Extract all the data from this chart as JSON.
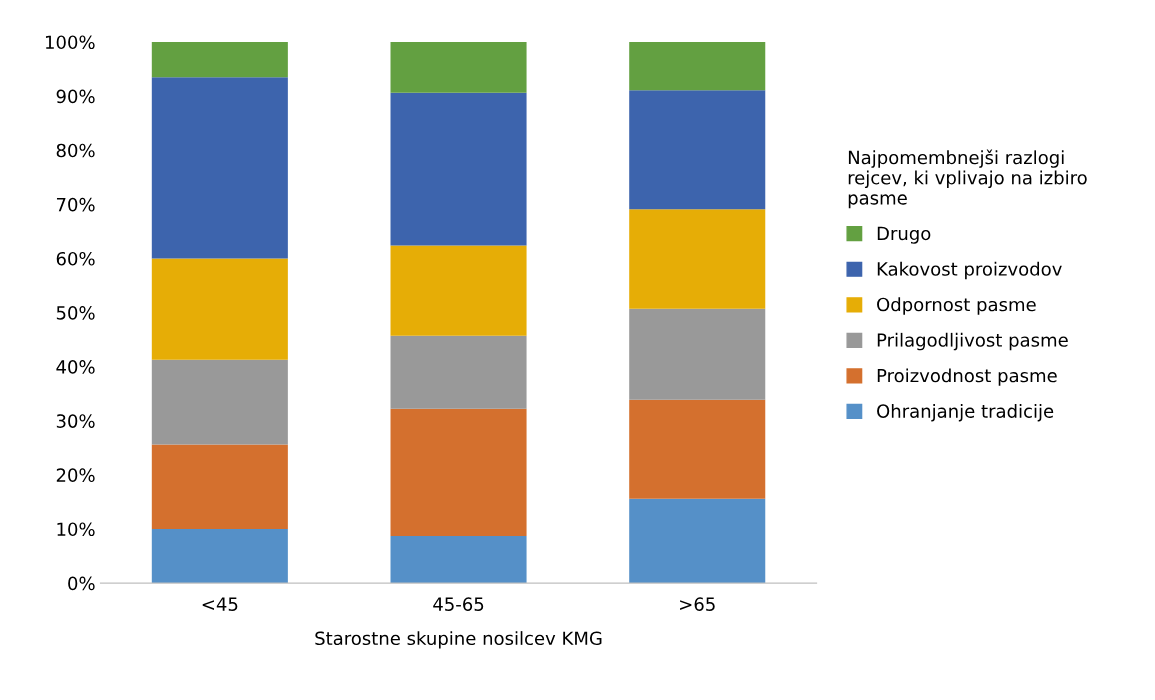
{
  "chart_data": {
    "type": "bar",
    "stacked": true,
    "xlabel": "Starostne skupine nosilcev KMG",
    "legend_title": "Najpomembnejši razlogi\nrejcev, ki vplivajo na izbiro\npasme",
    "legend": "right",
    "grid": false,
    "categories": [
      "<45",
      "45-65",
      ">65"
    ],
    "series": [
      {
        "name": "Ohranjanje tradicije",
        "color": "#5590c8",
        "values": [
          10.0,
          8.7,
          15.6
        ]
      },
      {
        "name": "Proizvodnost pasme",
        "color": "#d4702e",
        "values": [
          15.6,
          23.5,
          18.3
        ]
      },
      {
        "name": "Prilagodljivost pasme",
        "color": "#999999",
        "values": [
          15.7,
          13.5,
          16.8
        ]
      },
      {
        "name": "Odpornost pasme",
        "color": "#e6ad06",
        "values": [
          18.7,
          16.7,
          18.4
        ]
      },
      {
        "name": "Kakovost proizvodov",
        "color": "#3d64ad",
        "values": [
          33.5,
          28.2,
          22.0
        ]
      },
      {
        "name": "Drugo",
        "color": "#63a041",
        "values": [
          6.5,
          9.4,
          8.9
        ]
      }
    ],
    "ylim": [
      0,
      100
    ],
    "yticks": [
      {
        "value": 0,
        "label": "0%"
      },
      {
        "value": 10,
        "label": "10%"
      },
      {
        "value": 20,
        "label": "20%"
      },
      {
        "value": 30,
        "label": "30%"
      },
      {
        "value": 40,
        "label": "40%"
      },
      {
        "value": 50,
        "label": "50%"
      },
      {
        "value": 60,
        "label": "60%"
      },
      {
        "value": 70,
        "label": "70%"
      },
      {
        "value": 80,
        "label": "80%"
      },
      {
        "value": 90,
        "label": "90%"
      },
      {
        "value": 100,
        "label": "100%"
      }
    ]
  }
}
